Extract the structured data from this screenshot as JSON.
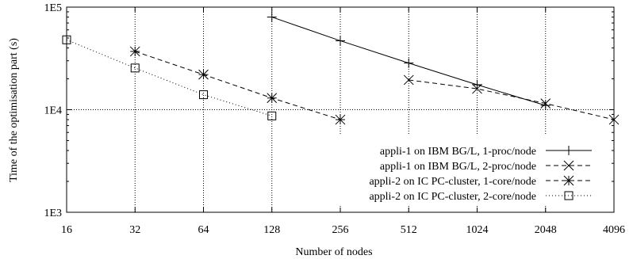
{
  "chart_data": {
    "type": "line",
    "xlabel": "Number of nodes",
    "ylabel": "Time of the optimisation part (s)",
    "x_scale": "log2",
    "y_scale": "log10",
    "xlim": [
      16,
      4096
    ],
    "ylim": [
      1000,
      100000
    ],
    "x_ticks": [
      16,
      32,
      64,
      128,
      256,
      512,
      1024,
      2048,
      4096
    ],
    "x_tick_labels": [
      "16",
      "32",
      "64",
      "128",
      "256",
      "512",
      "1024",
      "2048",
      "4096"
    ],
    "y_ticks": [
      1000,
      10000,
      100000
    ],
    "y_tick_labels": [
      "1E3",
      "1E4",
      "1E5"
    ],
    "grid": true,
    "legend_position": "bottom-right",
    "series": [
      {
        "name": "appli-1 on IBM BG/L, 1-proc/node",
        "marker": "plus",
        "line_style": "solid",
        "x": [
          128,
          256,
          512,
          1024,
          2048
        ],
        "y": [
          80000,
          47000,
          28500,
          17500,
          11000
        ]
      },
      {
        "name": "appli-1 on IBM BG/L, 2-proc/node",
        "marker": "cross",
        "line_style": "dashed",
        "x": [
          512,
          1024,
          2048,
          4096
        ],
        "y": [
          19500,
          16000,
          11500,
          8000
        ]
      },
      {
        "name": "appli-2 on IC PC-cluster, 1-core/node",
        "marker": "star",
        "line_style": "dashed",
        "x": [
          32,
          64,
          128,
          256
        ],
        "y": [
          37000,
          22000,
          13000,
          8000
        ]
      },
      {
        "name": "appli-2 on IC PC-cluster, 2-core/node",
        "marker": "square",
        "line_style": "dotted",
        "x": [
          16,
          32,
          64,
          128
        ],
        "y": [
          48000,
          25500,
          14000,
          8700
        ]
      }
    ]
  }
}
